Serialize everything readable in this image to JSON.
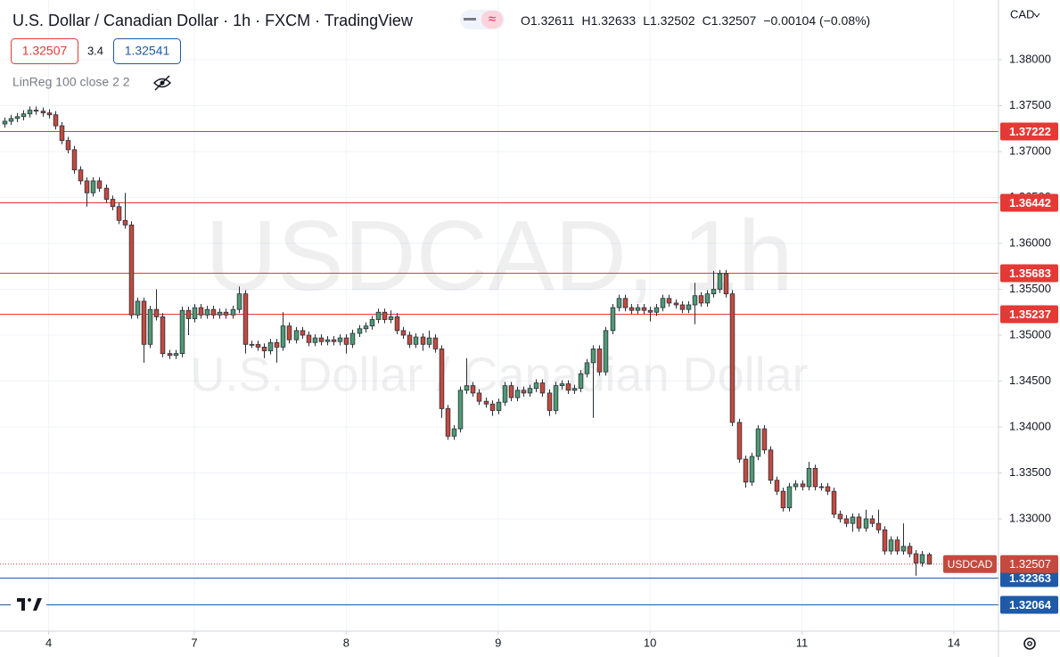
{
  "chart_data": {
    "type": "candlestick",
    "title": "U.S. Dollar / Canadian Dollar · 1h · FXCM · TradingView",
    "ohlc_legend": [
      {
        "label": "O",
        "field": "open"
      },
      {
        "label": "H",
        "field": "high"
      },
      {
        "label": "L",
        "field": "low"
      },
      {
        "label": "C",
        "field": "close"
      }
    ],
    "change": "−0.00104 (−0.08%)",
    "spread": "3.4",
    "ask": "1.32541",
    "indicator": "LinReg 100 close 2 2",
    "watermark": "USDCAD, 1h",
    "watermark_subtitle": "U.S. Dollar / Canadian Dollar",
    "currency": "CAD",
    "symbol": "USDCAD",
    "up_color": "#4f9a74",
    "down_color": "#c44a3f",
    "grid": true,
    "open": [
      1.373,
      1.3733,
      1.3736,
      1.3738,
      1.3741,
      1.3745,
      1.3744,
      1.3742,
      1.374,
      1.3728,
      1.3712,
      1.3702,
      1.368,
      1.3668,
      1.3655,
      1.3668,
      1.366,
      1.3648,
      1.364,
      1.3625,
      1.362,
      1.3522,
      1.3537,
      1.349,
      1.3528,
      1.352,
      1.348,
      1.3478,
      1.348,
      1.3527,
      1.3518,
      1.353,
      1.3522,
      1.3528,
      1.3522,
      1.3525,
      1.3522,
      1.3528,
      1.3545,
      1.349,
      1.349,
      1.3487,
      1.3483,
      1.3492,
      1.3487,
      1.351,
      1.3495,
      1.3505,
      1.35,
      1.3492,
      1.3497,
      1.3493,
      1.3495,
      1.3493,
      1.3497,
      1.349,
      1.3502,
      1.3507,
      1.351,
      1.3517,
      1.3525,
      1.3517,
      1.352,
      1.3505,
      1.35,
      1.349,
      1.3498,
      1.349,
      1.3497,
      1.3485,
      1.342,
      1.339,
      1.3398,
      1.344,
      1.3445,
      1.3437,
      1.3428,
      1.3425,
      1.3418,
      1.3427,
      1.3445,
      1.3432,
      1.344,
      1.3437,
      1.3442,
      1.3448,
      1.3437,
      1.3418,
      1.3445,
      1.3447,
      1.344,
      1.3442,
      1.3458,
      1.347,
      1.3485,
      1.346,
      1.3505,
      1.353,
      1.354,
      1.353,
      1.3527,
      1.353,
      1.3527,
      1.3525,
      1.353,
      1.354,
      1.3535,
      1.3533,
      1.3528,
      1.3533,
      1.3543,
      1.3535,
      1.3545,
      1.355,
      1.3567,
      1.3545,
      1.3405,
      1.3365,
      1.334,
      1.3368,
      1.3398,
      1.3375,
      1.3342,
      1.333,
      1.3312,
      1.3335,
      1.3338,
      1.3335,
      1.3355,
      1.3335,
      1.3335,
      1.333,
      1.3305,
      1.33,
      1.3295,
      1.3302,
      1.329,
      1.33,
      1.3295,
      1.3288,
      1.3265,
      1.3277,
      1.3265,
      1.327,
      1.3262,
      1.3252,
      1.32611
    ],
    "high": [
      1.3737,
      1.374,
      1.3742,
      1.3745,
      1.3749,
      1.3749,
      1.3748,
      1.3746,
      1.3744,
      1.3732,
      1.3716,
      1.3706,
      1.3684,
      1.3672,
      1.3672,
      1.3672,
      1.3664,
      1.3652,
      1.3644,
      1.3655,
      1.3624,
      1.3541,
      1.3541,
      1.3532,
      1.355,
      1.3524,
      1.3484,
      1.3484,
      1.3531,
      1.3531,
      1.3534,
      1.3534,
      1.3532,
      1.3532,
      1.3529,
      1.3529,
      1.3532,
      1.3553,
      1.3549,
      1.3494,
      1.3494,
      1.3491,
      1.3496,
      1.3496,
      1.3525,
      1.3514,
      1.3509,
      1.3509,
      1.3504,
      1.3501,
      1.3501,
      1.3499,
      1.3499,
      1.3501,
      1.3501,
      1.3506,
      1.3511,
      1.3514,
      1.3521,
      1.3529,
      1.3529,
      1.3527,
      1.3524,
      1.3509,
      1.3504,
      1.3502,
      1.3502,
      1.3505,
      1.3501,
      1.3489,
      1.3424,
      1.3402,
      1.3444,
      1.3475,
      1.3449,
      1.3441,
      1.3432,
      1.3429,
      1.3431,
      1.3449,
      1.3449,
      1.3444,
      1.3444,
      1.3446,
      1.3452,
      1.3452,
      1.3441,
      1.3449,
      1.3451,
      1.3451,
      1.3446,
      1.3462,
      1.3474,
      1.3489,
      1.3489,
      1.3509,
      1.3534,
      1.3544,
      1.3544,
      1.3534,
      1.3534,
      1.3534,
      1.3531,
      1.3534,
      1.3544,
      1.3544,
      1.3539,
      1.3537,
      1.3537,
      1.3557,
      1.3547,
      1.3549,
      1.357,
      1.3571,
      1.3571,
      1.3549,
      1.3409,
      1.3369,
      1.3372,
      1.3402,
      1.3402,
      1.3379,
      1.3346,
      1.3334,
      1.3339,
      1.3342,
      1.3342,
      1.3362,
      1.3359,
      1.3339,
      1.3339,
      1.3334,
      1.3309,
      1.3304,
      1.3306,
      1.3306,
      1.331,
      1.3304,
      1.331,
      1.3292,
      1.3281,
      1.3281,
      1.3295,
      1.3274,
      1.3266,
      1.3265,
      1.32633
    ],
    "low": [
      1.3726,
      1.3729,
      1.3732,
      1.3734,
      1.3737,
      1.374,
      1.3738,
      1.3736,
      1.3724,
      1.3708,
      1.3698,
      1.3676,
      1.3664,
      1.364,
      1.3651,
      1.3656,
      1.3644,
      1.3636,
      1.3621,
      1.3616,
      1.3518,
      1.3518,
      1.347,
      1.3486,
      1.3516,
      1.3476,
      1.3474,
      1.3474,
      1.3476,
      1.35,
      1.3514,
      1.3518,
      1.3518,
      1.3518,
      1.3518,
      1.3518,
      1.3518,
      1.3524,
      1.348,
      1.3486,
      1.3483,
      1.3475,
      1.3479,
      1.347,
      1.3483,
      1.3491,
      1.3491,
      1.3496,
      1.3488,
      1.3488,
      1.3489,
      1.3489,
      1.3489,
      1.3489,
      1.348,
      1.3486,
      1.3498,
      1.3503,
      1.3506,
      1.3513,
      1.3513,
      1.3513,
      1.3501,
      1.3496,
      1.3486,
      1.3486,
      1.3483,
      1.3486,
      1.3481,
      1.341,
      1.3386,
      1.3386,
      1.3394,
      1.3436,
      1.3433,
      1.3424,
      1.3421,
      1.3412,
      1.3414,
      1.3423,
      1.3428,
      1.3428,
      1.3433,
      1.3433,
      1.3438,
      1.3433,
      1.3412,
      1.3414,
      1.3441,
      1.3436,
      1.3436,
      1.3438,
      1.3454,
      1.341,
      1.3456,
      1.3456,
      1.3501,
      1.3526,
      1.3526,
      1.3523,
      1.3523,
      1.3523,
      1.3515,
      1.3521,
      1.3526,
      1.3531,
      1.3529,
      1.3524,
      1.3524,
      1.3512,
      1.3531,
      1.3531,
      1.3541,
      1.3546,
      1.3541,
      1.3401,
      1.3361,
      1.3334,
      1.3336,
      1.3364,
      1.3371,
      1.3338,
      1.3326,
      1.3308,
      1.3308,
      1.3331,
      1.3331,
      1.3331,
      1.3331,
      1.3331,
      1.3326,
      1.3301,
      1.3296,
      1.3291,
      1.3286,
      1.3286,
      1.3286,
      1.3291,
      1.3284,
      1.3261,
      1.3261,
      1.3261,
      1.3261,
      1.3258,
      1.3238,
      1.3248,
      1.32502
    ],
    "close": [
      1.3733,
      1.3736,
      1.3738,
      1.3741,
      1.3745,
      1.3744,
      1.3742,
      1.374,
      1.3728,
      1.3712,
      1.3702,
      1.368,
      1.3668,
      1.3655,
      1.3668,
      1.366,
      1.3648,
      1.364,
      1.3625,
      1.362,
      1.3522,
      1.3537,
      1.349,
      1.3528,
      1.352,
      1.348,
      1.3478,
      1.348,
      1.3527,
      1.3518,
      1.353,
      1.3522,
      1.3528,
      1.3522,
      1.3525,
      1.3522,
      1.3528,
      1.3545,
      1.349,
      1.349,
      1.3487,
      1.3483,
      1.3492,
      1.3487,
      1.351,
      1.3495,
      1.3505,
      1.35,
      1.3492,
      1.3497,
      1.3493,
      1.3495,
      1.3493,
      1.3497,
      1.349,
      1.3502,
      1.3507,
      1.351,
      1.3517,
      1.3525,
      1.3517,
      1.352,
      1.3505,
      1.35,
      1.349,
      1.3498,
      1.349,
      1.3497,
      1.3485,
      1.342,
      1.339,
      1.3398,
      1.344,
      1.3445,
      1.3437,
      1.3428,
      1.3425,
      1.3418,
      1.3427,
      1.3445,
      1.3432,
      1.344,
      1.3437,
      1.3442,
      1.3448,
      1.3437,
      1.3418,
      1.3445,
      1.3447,
      1.344,
      1.3442,
      1.3458,
      1.347,
      1.3485,
      1.346,
      1.3505,
      1.353,
      1.354,
      1.353,
      1.3527,
      1.353,
      1.3527,
      1.3525,
      1.353,
      1.354,
      1.3535,
      1.3533,
      1.3528,
      1.3533,
      1.3543,
      1.3535,
      1.3545,
      1.355,
      1.3567,
      1.3545,
      1.3405,
      1.3365,
      1.334,
      1.3368,
      1.3398,
      1.3375,
      1.3342,
      1.333,
      1.3312,
      1.3335,
      1.3338,
      1.3335,
      1.3355,
      1.3335,
      1.3335,
      1.333,
      1.3305,
      1.33,
      1.3295,
      1.3302,
      1.329,
      1.33,
      1.3295,
      1.3288,
      1.3265,
      1.3277,
      1.3265,
      1.327,
      1.3262,
      1.3252,
      1.32611,
      1.32507
    ],
    "xlim": [
      -0.7,
      157.05
    ],
    "xticks": [
      {
        "value": 7,
        "label": "4"
      },
      {
        "value": 30,
        "label": "7"
      },
      {
        "value": 54,
        "label": "8"
      },
      {
        "value": 78,
        "label": "9"
      },
      {
        "value": 102,
        "label": "10"
      },
      {
        "value": 126,
        "label": "11"
      },
      {
        "value": 150,
        "label": "14"
      }
    ],
    "ylim": [
      1.31777,
      1.3865
    ],
    "yticks": [
      {
        "value": 1.38,
        "label": "1.38000"
      },
      {
        "value": 1.375,
        "label": "1.37500"
      },
      {
        "value": 1.37,
        "label": "1.37000"
      },
      {
        "value": 1.365,
        "label": "1.36500"
      },
      {
        "value": 1.36,
        "label": "1.36000"
      },
      {
        "value": 1.355,
        "label": "1.35500"
      },
      {
        "value": 1.35,
        "label": "1.35000"
      },
      {
        "value": 1.345,
        "label": "1.34500"
      },
      {
        "value": 1.34,
        "label": "1.34000"
      },
      {
        "value": 1.335,
        "label": "1.33500"
      },
      {
        "value": 1.33,
        "label": "1.33000"
      }
    ],
    "levels": [
      {
        "value": 1.37222,
        "color": "#e53935"
      },
      {
        "value": 1.36442,
        "color": "#e53935"
      },
      {
        "value": 1.35683,
        "color": "#e53935"
      },
      {
        "value": 1.35237,
        "color": "#e53935"
      },
      {
        "value": 1.32363,
        "color": "#1e5aa8"
      },
      {
        "value": 1.32064,
        "color": "#1e5aa8"
      }
    ]
  }
}
